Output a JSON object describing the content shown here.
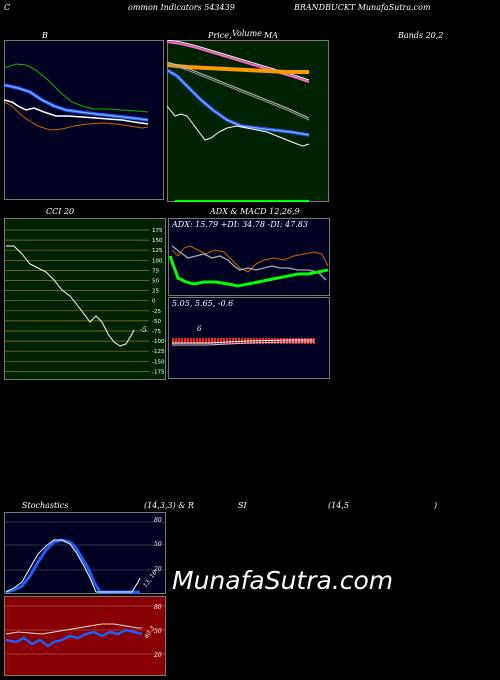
{
  "header": {
    "left": "C",
    "middle": "ommon Indicators 543439",
    "right": "BRANDBUCKT MunafaSutra.com"
  },
  "panels": {
    "bb": {
      "title": "B",
      "title_right": "Bands 20,2"
    },
    "price": {
      "title_a": "Price,",
      "title_b": "Volume",
      "title_c": "MA"
    },
    "cci": {
      "title": "CCI 20",
      "ticks": [
        "175",
        "150",
        "125",
        "100",
        "75",
        "50",
        "25",
        "0",
        "-25",
        "-50",
        "-75",
        "-100",
        "-125",
        "-150",
        "-175"
      ],
      "value_label": "-5"
    },
    "adx": {
      "title": "ADX  & MACD 12,26,9",
      "values": "ADX: 15.79  +DI: 34.78  -DI: 47.83"
    },
    "macd": {
      "values": "5.05,  5.65,  -0.6",
      "value_label": "6"
    },
    "stoch": {
      "title_a": "Stochastics",
      "title_b": "(14,3,3) & R",
      "title_c": "SI",
      "title_d": "(14,5",
      "title_e": ")",
      "ticks": [
        "80",
        "50",
        "20"
      ],
      "value_label": "13, 16"
    },
    "rsi": {
      "ticks": [
        "80",
        "50",
        "20"
      ],
      "value_label": "40.3"
    }
  },
  "watermark": "MunafaSutra.com",
  "colors": {
    "navy": "#000022",
    "green_bg": "#002200",
    "olive_bg": "#002200",
    "red_bg": "#880000"
  }
}
